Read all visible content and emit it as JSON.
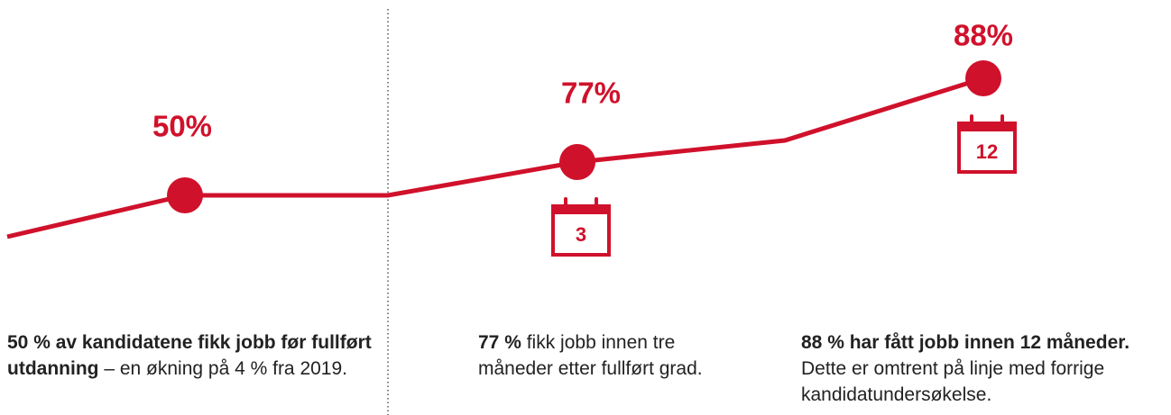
{
  "points": [
    {
      "label": "50%"
    },
    {
      "label": "77%",
      "calendar": "3"
    },
    {
      "label": "88%",
      "calendar": "12"
    }
  ],
  "captions": [
    {
      "bold": "50 % av kandidatene fikk jobb før fullført utdanning",
      "text": " – en økning på 4 % fra 2019."
    },
    {
      "bold": "77 %",
      "text": " fikk jobb innen tre måneder etter fullført grad."
    },
    {
      "bold": "88 % har fått jobb innen 12 måneder.",
      "text": " Dette er omtrent på linje med forrige kandidatundersøkelse."
    }
  ]
}
